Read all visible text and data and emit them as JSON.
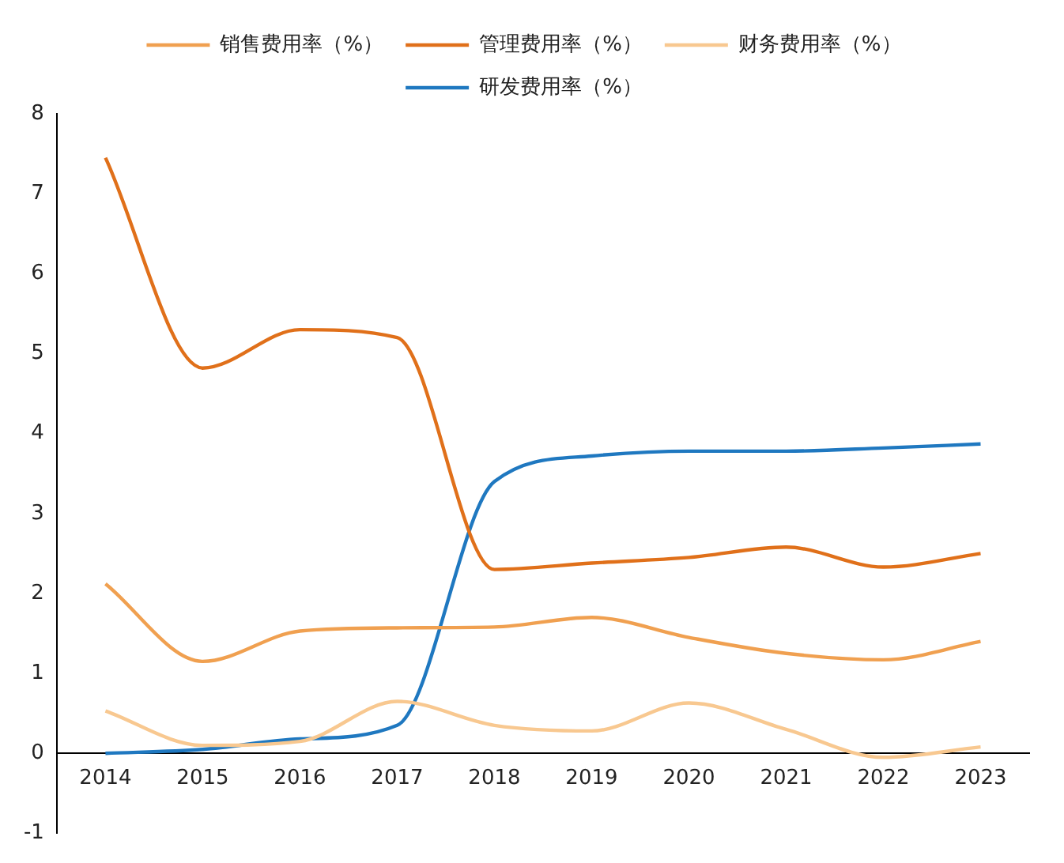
{
  "chart_data": {
    "type": "line",
    "categories": [
      "2014",
      "2015",
      "2016",
      "2017",
      "2018",
      "2019",
      "2020",
      "2021",
      "2022",
      "2023"
    ],
    "series": [
      {
        "name": "销售费用率（%）",
        "color": "#f0a050",
        "values": [
          2.12,
          1.15,
          1.53,
          1.57,
          1.58,
          1.7,
          1.45,
          1.25,
          1.17,
          1.4
        ]
      },
      {
        "name": "管理费用率（%）",
        "color": "#e0701a",
        "values": [
          7.45,
          4.82,
          5.3,
          5.2,
          2.3,
          2.38,
          2.45,
          2.58,
          2.33,
          2.5
        ]
      },
      {
        "name": "财务费用率（%）",
        "color": "#f8c890",
        "values": [
          0.53,
          0.1,
          0.15,
          0.65,
          0.35,
          0.28,
          0.63,
          0.3,
          -0.05,
          0.08
        ]
      },
      {
        "name": "研发费用率（%）",
        "color": "#1f78c0",
        "values": [
          0,
          0.05,
          0.18,
          0.35,
          3.4,
          3.72,
          3.78,
          3.78,
          3.82,
          3.87
        ]
      }
    ],
    "ylim": [
      -1,
      8
    ],
    "yticks": [
      -1,
      0,
      1,
      2,
      3,
      4,
      5,
      6,
      7,
      8
    ],
    "grid": false,
    "legend": "top",
    "marker": "none",
    "line_style": "solid"
  }
}
